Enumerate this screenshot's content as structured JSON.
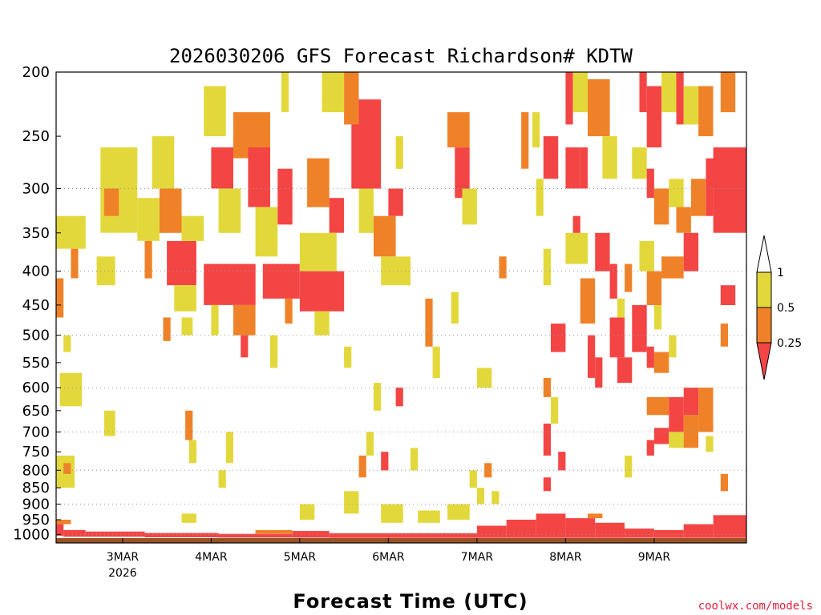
{
  "chart_data": {
    "type": "heatmap",
    "title": "2026030206 GFS Forecast Richardson# KDTW",
    "xlabel": "Forecast Time (UTC)",
    "ylabel": "",
    "credit": "coolwx.com/models",
    "y_scale": "log",
    "y_inverted": true,
    "y_ticks": [
      200,
      250,
      300,
      350,
      400,
      450,
      500,
      550,
      600,
      650,
      700,
      750,
      800,
      850,
      900,
      950,
      1000
    ],
    "y_gridlines": [
      300,
      400,
      500,
      600,
      700,
      800,
      900,
      1000
    ],
    "ylim": [
      200,
      1030
    ],
    "x_ticks": [
      {
        "label": "3MAR",
        "sub": "2026",
        "hour": 24
      },
      {
        "label": "4MAR",
        "sub": "",
        "hour": 48
      },
      {
        "label": "5MAR",
        "sub": "",
        "hour": 72
      },
      {
        "label": "6MAR",
        "sub": "",
        "hour": 96
      },
      {
        "label": "7MAR",
        "sub": "",
        "hour": 120
      },
      {
        "label": "8MAR",
        "sub": "",
        "hour": 144
      },
      {
        "label": "9MAR",
        "sub": "",
        "hour": 168
      }
    ],
    "xlim": [
      6,
      193
    ],
    "colorbar": {
      "labels": [
        "1",
        "0.5",
        "0.25"
      ],
      "bins": [
        {
          "range": "0.5-1",
          "color": "#e3d83b"
        },
        {
          "range": "0.25-0.5",
          "color": "#ef8228"
        },
        {
          "range": "<0.25",
          "color": "#f44545"
        }
      ]
    },
    "colors": {
      "high": "#e3d83b",
      "mid": "#ef8228",
      "low": "#f44545",
      "ground": "#9a5224"
    },
    "surface_pressure": 1013,
    "cells": [
      {
        "h0": 6,
        "h1": 14,
        "p0": 330,
        "p1": 370,
        "c": "high"
      },
      {
        "h0": 6,
        "h1": 8,
        "p0": 410,
        "p1": 470,
        "c": "mid"
      },
      {
        "h0": 10,
        "h1": 12,
        "p0": 370,
        "p1": 410,
        "c": "mid"
      },
      {
        "h0": 6,
        "h1": 11,
        "p0": 760,
        "p1": 850,
        "c": "high"
      },
      {
        "h0": 8,
        "h1": 10,
        "p0": 780,
        "p1": 810,
        "c": "mid"
      },
      {
        "h0": 7,
        "h1": 13,
        "p0": 570,
        "p1": 640,
        "c": "high"
      },
      {
        "h0": 8,
        "h1": 10,
        "p0": 500,
        "p1": 530,
        "c": "high"
      },
      {
        "h0": 18,
        "h1": 28,
        "p0": 260,
        "p1": 350,
        "c": "high"
      },
      {
        "h0": 19,
        "h1": 23,
        "p0": 300,
        "p1": 330,
        "c": "mid"
      },
      {
        "h0": 17,
        "h1": 22,
        "p0": 380,
        "p1": 420,
        "c": "high"
      },
      {
        "h0": 19,
        "h1": 22,
        "p0": 650,
        "p1": 710,
        "c": "high"
      },
      {
        "h0": 28,
        "h1": 34,
        "p0": 310,
        "p1": 360,
        "c": "high"
      },
      {
        "h0": 30,
        "h1": 32,
        "p0": 360,
        "p1": 410,
        "c": "mid"
      },
      {
        "h0": 32,
        "h1": 38,
        "p0": 250,
        "p1": 300,
        "c": "high"
      },
      {
        "h0": 34,
        "h1": 40,
        "p0": 300,
        "p1": 350,
        "c": "mid"
      },
      {
        "h0": 36,
        "h1": 44,
        "p0": 360,
        "p1": 420,
        "c": "low"
      },
      {
        "h0": 40,
        "h1": 46,
        "p0": 330,
        "p1": 360,
        "c": "high"
      },
      {
        "h0": 38,
        "h1": 44,
        "p0": 420,
        "p1": 460,
        "c": "high"
      },
      {
        "h0": 35,
        "h1": 37,
        "p0": 470,
        "p1": 510,
        "c": "mid"
      },
      {
        "h0": 40,
        "h1": 43,
        "p0": 470,
        "p1": 500,
        "c": "high"
      },
      {
        "h0": 41,
        "h1": 43,
        "p0": 650,
        "p1": 720,
        "c": "mid"
      },
      {
        "h0": 42,
        "h1": 44,
        "p0": 720,
        "p1": 780,
        "c": "high"
      },
      {
        "h0": 46,
        "h1": 52,
        "p0": 210,
        "p1": 250,
        "c": "high"
      },
      {
        "h0": 48,
        "h1": 54,
        "p0": 260,
        "p1": 300,
        "c": "low"
      },
      {
        "h0": 50,
        "h1": 56,
        "p0": 300,
        "p1": 350,
        "c": "high"
      },
      {
        "h0": 46,
        "h1": 60,
        "p0": 390,
        "p1": 450,
        "c": "low"
      },
      {
        "h0": 48,
        "h1": 50,
        "p0": 450,
        "p1": 500,
        "c": "high"
      },
      {
        "h0": 54,
        "h1": 60,
        "p0": 450,
        "p1": 500,
        "c": "mid"
      },
      {
        "h0": 56,
        "h1": 58,
        "p0": 500,
        "p1": 540,
        "c": "low"
      },
      {
        "h0": 52,
        "h1": 54,
        "p0": 700,
        "p1": 780,
        "c": "high"
      },
      {
        "h0": 50,
        "h1": 52,
        "p0": 800,
        "p1": 850,
        "c": "high"
      },
      {
        "h0": 54,
        "h1": 64,
        "p0": 230,
        "p1": 270,
        "c": "mid"
      },
      {
        "h0": 58,
        "h1": 64,
        "p0": 260,
        "p1": 320,
        "c": "low"
      },
      {
        "h0": 60,
        "h1": 66,
        "p0": 320,
        "p1": 380,
        "c": "high"
      },
      {
        "h0": 62,
        "h1": 72,
        "p0": 390,
        "p1": 440,
        "c": "low"
      },
      {
        "h0": 66,
        "h1": 70,
        "p0": 280,
        "p1": 340,
        "c": "low"
      },
      {
        "h0": 64,
        "h1": 66,
        "p0": 500,
        "p1": 560,
        "c": "high"
      },
      {
        "h0": 68,
        "h1": 70,
        "p0": 440,
        "p1": 480,
        "c": "mid"
      },
      {
        "h0": 67,
        "h1": 69,
        "p0": 200,
        "p1": 230,
        "c": "high"
      },
      {
        "h0": 72,
        "h1": 82,
        "p0": 350,
        "p1": 400,
        "c": "high"
      },
      {
        "h0": 72,
        "h1": 84,
        "p0": 400,
        "p1": 460,
        "c": "low"
      },
      {
        "h0": 78,
        "h1": 84,
        "p0": 200,
        "p1": 230,
        "c": "high"
      },
      {
        "h0": 74,
        "h1": 80,
        "p0": 270,
        "p1": 320,
        "c": "mid"
      },
      {
        "h0": 76,
        "h1": 80,
        "p0": 460,
        "p1": 500,
        "c": "high"
      },
      {
        "h0": 80,
        "h1": 84,
        "p0": 310,
        "p1": 350,
        "c": "low"
      },
      {
        "h0": 86,
        "h1": 94,
        "p0": 220,
        "p1": 300,
        "c": "low"
      },
      {
        "h0": 84,
        "h1": 88,
        "p0": 200,
        "p1": 240,
        "c": "mid"
      },
      {
        "h0": 88,
        "h1": 92,
        "p0": 300,
        "p1": 350,
        "c": "high"
      },
      {
        "h0": 92,
        "h1": 98,
        "p0": 330,
        "p1": 380,
        "c": "mid"
      },
      {
        "h0": 96,
        "h1": 100,
        "p0": 300,
        "p1": 330,
        "c": "low"
      },
      {
        "h0": 94,
        "h1": 102,
        "p0": 380,
        "p1": 420,
        "c": "high"
      },
      {
        "h0": 98,
        "h1": 100,
        "p0": 250,
        "p1": 280,
        "c": "high"
      },
      {
        "h0": 84,
        "h1": 86,
        "p0": 520,
        "p1": 560,
        "c": "high"
      },
      {
        "h0": 92,
        "h1": 94,
        "p0": 590,
        "p1": 650,
        "c": "high"
      },
      {
        "h0": 90,
        "h1": 92,
        "p0": 700,
        "p1": 760,
        "c": "high"
      },
      {
        "h0": 88,
        "h1": 90,
        "p0": 760,
        "p1": 820,
        "c": "mid"
      },
      {
        "h0": 94,
        "h1": 96,
        "p0": 750,
        "p1": 800,
        "c": "low"
      },
      {
        "h0": 98,
        "h1": 100,
        "p0": 600,
        "p1": 640,
        "c": "low"
      },
      {
        "h0": 102,
        "h1": 104,
        "p0": 740,
        "p1": 800,
        "c": "high"
      },
      {
        "h0": 106,
        "h1": 108,
        "p0": 440,
        "p1": 520,
        "c": "mid"
      },
      {
        "h0": 108,
        "h1": 110,
        "p0": 520,
        "p1": 580,
        "c": "high"
      },
      {
        "h0": 112,
        "h1": 118,
        "p0": 230,
        "p1": 260,
        "c": "mid"
      },
      {
        "h0": 114,
        "h1": 118,
        "p0": 260,
        "p1": 310,
        "c": "low"
      },
      {
        "h0": 116,
        "h1": 120,
        "p0": 300,
        "p1": 340,
        "c": "high"
      },
      {
        "h0": 113,
        "h1": 115,
        "p0": 430,
        "p1": 480,
        "c": "high"
      },
      {
        "h0": 120,
        "h1": 124,
        "p0": 560,
        "p1": 600,
        "c": "high"
      },
      {
        "h0": 118,
        "h1": 120,
        "p0": 800,
        "p1": 850,
        "c": "high"
      },
      {
        "h0": 122,
        "h1": 124,
        "p0": 780,
        "p1": 820,
        "c": "mid"
      },
      {
        "h0": 126,
        "h1": 128,
        "p0": 380,
        "p1": 410,
        "c": "mid"
      },
      {
        "h0": 132,
        "h1": 134,
        "p0": 230,
        "p1": 280,
        "c": "mid"
      },
      {
        "h0": 135,
        "h1": 137,
        "p0": 230,
        "p1": 260,
        "c": "high"
      },
      {
        "h0": 138,
        "h1": 142,
        "p0": 250,
        "p1": 290,
        "c": "low"
      },
      {
        "h0": 136,
        "h1": 138,
        "p0": 290,
        "p1": 330,
        "c": "high"
      },
      {
        "h0": 138,
        "h1": 140,
        "p0": 370,
        "p1": 420,
        "c": "high"
      },
      {
        "h0": 140,
        "h1": 144,
        "p0": 480,
        "p1": 530,
        "c": "low"
      },
      {
        "h0": 138,
        "h1": 140,
        "p0": 580,
        "p1": 620,
        "c": "mid"
      },
      {
        "h0": 138,
        "h1": 140,
        "p0": 680,
        "p1": 760,
        "c": "low"
      },
      {
        "h0": 140,
        "h1": 142,
        "p0": 620,
        "p1": 680,
        "c": "high"
      },
      {
        "h0": 138,
        "h1": 140,
        "p0": 820,
        "p1": 860,
        "c": "low"
      },
      {
        "h0": 142,
        "h1": 144,
        "p0": 750,
        "p1": 800,
        "c": "low"
      },
      {
        "h0": 144,
        "h1": 146,
        "p0": 200,
        "p1": 240,
        "c": "low"
      },
      {
        "h0": 146,
        "h1": 150,
        "p0": 200,
        "p1": 230,
        "c": "high"
      },
      {
        "h0": 150,
        "h1": 156,
        "p0": 205,
        "p1": 250,
        "c": "mid"
      },
      {
        "h0": 154,
        "h1": 158,
        "p0": 250,
        "p1": 290,
        "c": "high"
      },
      {
        "h0": 144,
        "h1": 148,
        "p0": 260,
        "p1": 300,
        "c": "low"
      },
      {
        "h0": 148,
        "h1": 150,
        "p0": 260,
        "p1": 300,
        "c": "low"
      },
      {
        "h0": 144,
        "h1": 150,
        "p0": 350,
        "p1": 390,
        "c": "high"
      },
      {
        "h0": 146,
        "h1": 148,
        "p0": 330,
        "p1": 350,
        "c": "low"
      },
      {
        "h0": 148,
        "h1": 152,
        "p0": 410,
        "p1": 480,
        "c": "mid"
      },
      {
        "h0": 152,
        "h1": 156,
        "p0": 350,
        "p1": 400,
        "c": "low"
      },
      {
        "h0": 150,
        "h1": 152,
        "p0": 500,
        "p1": 580,
        "c": "low"
      },
      {
        "h0": 152,
        "h1": 154,
        "p0": 540,
        "p1": 600,
        "c": "low"
      },
      {
        "h0": 156,
        "h1": 158,
        "p0": 390,
        "p1": 440,
        "c": "low"
      },
      {
        "h0": 158,
        "h1": 160,
        "p0": 440,
        "p1": 480,
        "c": "high"
      },
      {
        "h0": 156,
        "h1": 160,
        "p0": 470,
        "p1": 540,
        "c": "low"
      },
      {
        "h0": 158,
        "h1": 162,
        "p0": 540,
        "p1": 590,
        "c": "low"
      },
      {
        "h0": 160,
        "h1": 162,
        "p0": 390,
        "p1": 430,
        "c": "mid"
      },
      {
        "h0": 164,
        "h1": 166,
        "p0": 200,
        "p1": 230,
        "c": "low"
      },
      {
        "h0": 166,
        "h1": 170,
        "p0": 210,
        "p1": 260,
        "c": "low"
      },
      {
        "h0": 170,
        "h1": 174,
        "p0": 200,
        "p1": 230,
        "c": "high"
      },
      {
        "h0": 174,
        "h1": 176,
        "p0": 200,
        "p1": 240,
        "c": "low"
      },
      {
        "h0": 176,
        "h1": 180,
        "p0": 210,
        "p1": 240,
        "c": "high"
      },
      {
        "h0": 180,
        "h1": 184,
        "p0": 210,
        "p1": 250,
        "c": "mid"
      },
      {
        "h0": 186,
        "h1": 190,
        "p0": 200,
        "p1": 230,
        "c": "mid"
      },
      {
        "h0": 162,
        "h1": 166,
        "p0": 260,
        "p1": 290,
        "c": "high"
      },
      {
        "h0": 166,
        "h1": 168,
        "p0": 280,
        "p1": 310,
        "c": "low"
      },
      {
        "h0": 168,
        "h1": 172,
        "p0": 300,
        "p1": 340,
        "c": "mid"
      },
      {
        "h0": 172,
        "h1": 176,
        "p0": 290,
        "p1": 320,
        "c": "high"
      },
      {
        "h0": 174,
        "h1": 178,
        "p0": 320,
        "p1": 350,
        "c": "mid"
      },
      {
        "h0": 178,
        "h1": 182,
        "p0": 290,
        "p1": 330,
        "c": "mid"
      },
      {
        "h0": 182,
        "h1": 184,
        "p0": 300,
        "p1": 330,
        "c": "low"
      },
      {
        "h0": 184,
        "h1": 193,
        "p0": 260,
        "p1": 350,
        "c": "low"
      },
      {
        "h0": 182,
        "h1": 186,
        "p0": 270,
        "p1": 300,
        "c": "low"
      },
      {
        "h0": 164,
        "h1": 168,
        "p0": 360,
        "p1": 400,
        "c": "high"
      },
      {
        "h0": 166,
        "h1": 170,
        "p0": 400,
        "p1": 450,
        "c": "mid"
      },
      {
        "h0": 170,
        "h1": 176,
        "p0": 380,
        "p1": 410,
        "c": "mid"
      },
      {
        "h0": 176,
        "h1": 180,
        "p0": 350,
        "p1": 400,
        "c": "low"
      },
      {
        "h0": 168,
        "h1": 170,
        "p0": 450,
        "p1": 490,
        "c": "high"
      },
      {
        "h0": 162,
        "h1": 166,
        "p0": 450,
        "p1": 530,
        "c": "low"
      },
      {
        "h0": 166,
        "h1": 168,
        "p0": 520,
        "p1": 560,
        "c": "low"
      },
      {
        "h0": 168,
        "h1": 172,
        "p0": 530,
        "p1": 570,
        "c": "mid"
      },
      {
        "h0": 172,
        "h1": 174,
        "p0": 500,
        "p1": 540,
        "c": "high"
      },
      {
        "h0": 186,
        "h1": 190,
        "p0": 420,
        "p1": 450,
        "c": "low"
      },
      {
        "h0": 186,
        "h1": 188,
        "p0": 480,
        "p1": 520,
        "c": "mid"
      },
      {
        "h0": 166,
        "h1": 172,
        "p0": 620,
        "p1": 660,
        "c": "mid"
      },
      {
        "h0": 172,
        "h1": 176,
        "p0": 620,
        "p1": 700,
        "c": "low"
      },
      {
        "h0": 176,
        "h1": 180,
        "p0": 600,
        "p1": 660,
        "c": "low"
      },
      {
        "h0": 180,
        "h1": 184,
        "p0": 600,
        "p1": 700,
        "c": "mid"
      },
      {
        "h0": 168,
        "h1": 172,
        "p0": 690,
        "p1": 730,
        "c": "low"
      },
      {
        "h0": 166,
        "h1": 168,
        "p0": 720,
        "p1": 760,
        "c": "low"
      },
      {
        "h0": 172,
        "h1": 176,
        "p0": 700,
        "p1": 740,
        "c": "high"
      },
      {
        "h0": 176,
        "h1": 180,
        "p0": 660,
        "p1": 740,
        "c": "mid"
      },
      {
        "h0": 182,
        "h1": 184,
        "p0": 710,
        "p1": 750,
        "c": "high"
      },
      {
        "h0": 160,
        "h1": 162,
        "p0": 760,
        "p1": 820,
        "c": "high"
      },
      {
        "h0": 186,
        "h1": 188,
        "p0": 810,
        "p1": 860,
        "c": "mid"
      },
      {
        "h0": 6,
        "h1": 8,
        "p0": 960,
        "p1": 1005,
        "c": "low"
      },
      {
        "h0": 8,
        "h1": 14,
        "p0": 985,
        "p1": 1008,
        "c": "low"
      },
      {
        "h0": 14,
        "h1": 30,
        "p0": 990,
        "p1": 1008,
        "c": "low"
      },
      {
        "h0": 30,
        "h1": 50,
        "p0": 995,
        "p1": 1010,
        "c": "low"
      },
      {
        "h0": 50,
        "h1": 70,
        "p0": 998,
        "p1": 1011,
        "c": "low"
      },
      {
        "h0": 70,
        "h1": 80,
        "p0": 988,
        "p1": 1011,
        "c": "low"
      },
      {
        "h0": 80,
        "h1": 120,
        "p0": 996,
        "p1": 1012,
        "c": "low"
      },
      {
        "h0": 120,
        "h1": 128,
        "p0": 970,
        "p1": 1012,
        "c": "low"
      },
      {
        "h0": 128,
        "h1": 136,
        "p0": 950,
        "p1": 1012,
        "c": "low"
      },
      {
        "h0": 136,
        "h1": 144,
        "p0": 930,
        "p1": 1012,
        "c": "low"
      },
      {
        "h0": 144,
        "h1": 152,
        "p0": 945,
        "p1": 1012,
        "c": "low"
      },
      {
        "h0": 152,
        "h1": 160,
        "p0": 960,
        "p1": 1012,
        "c": "low"
      },
      {
        "h0": 160,
        "h1": 168,
        "p0": 980,
        "p1": 1012,
        "c": "low"
      },
      {
        "h0": 168,
        "h1": 176,
        "p0": 985,
        "p1": 1012,
        "c": "low"
      },
      {
        "h0": 176,
        "h1": 184,
        "p0": 965,
        "p1": 1012,
        "c": "low"
      },
      {
        "h0": 184,
        "h1": 193,
        "p0": 935,
        "p1": 1012,
        "c": "low"
      },
      {
        "h0": 6,
        "h1": 10,
        "p0": 950,
        "p1": 965,
        "c": "mid"
      },
      {
        "h0": 60,
        "h1": 70,
        "p0": 985,
        "p1": 998,
        "c": "mid"
      },
      {
        "h0": 150,
        "h1": 154,
        "p0": 930,
        "p1": 945,
        "c": "mid"
      },
      {
        "h0": 40,
        "h1": 44,
        "p0": 930,
        "p1": 960,
        "c": "high"
      },
      {
        "h0": 72,
        "h1": 76,
        "p0": 900,
        "p1": 950,
        "c": "high"
      },
      {
        "h0": 84,
        "h1": 88,
        "p0": 860,
        "p1": 930,
        "c": "high"
      },
      {
        "h0": 94,
        "h1": 100,
        "p0": 900,
        "p1": 960,
        "c": "high"
      },
      {
        "h0": 104,
        "h1": 110,
        "p0": 920,
        "p1": 960,
        "c": "high"
      },
      {
        "h0": 112,
        "h1": 118,
        "p0": 900,
        "p1": 950,
        "c": "high"
      },
      {
        "h0": 120,
        "h1": 122,
        "p0": 850,
        "p1": 900,
        "c": "high"
      },
      {
        "h0": 124,
        "h1": 126,
        "p0": 860,
        "p1": 900,
        "c": "high"
      }
    ]
  }
}
